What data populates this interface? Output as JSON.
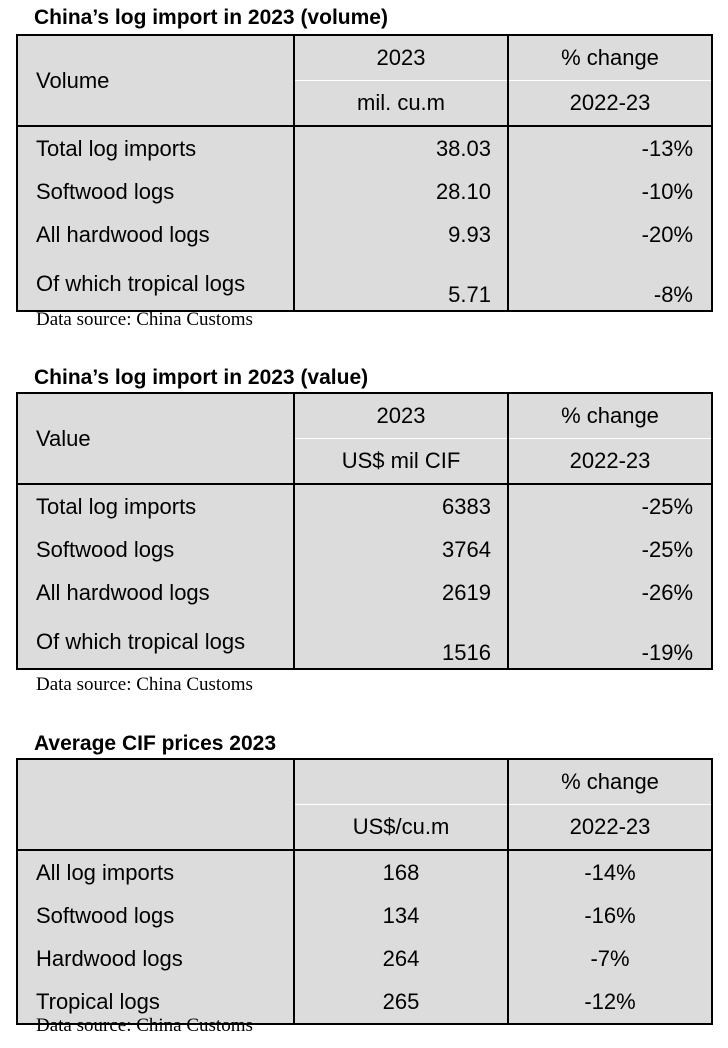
{
  "volume_table": {
    "title": "China’s log import in 2023 (volume)",
    "header_row_label": "Volume",
    "col2_line1": "2023",
    "col2_line2": "mil. cu.m",
    "col3_line1": "% change",
    "col3_line2": "2022-23",
    "rows": [
      {
        "label": "Total log imports",
        "value": "38.03",
        "change": "-13%"
      },
      {
        "label": "Softwood logs",
        "value": "28.10",
        "change": "-10%"
      },
      {
        "label": "All hardwood logs",
        "value": "9.93",
        "change": "-20%"
      },
      {
        "label": "Of which tropical logs",
        "value": "5.71",
        "change": "-8%"
      }
    ],
    "source": "Data source: China Customs"
  },
  "value_table": {
    "title": "China’s log import in 2023 (value)",
    "header_row_label": "Value",
    "col2_line1": "2023",
    "col2_line2": "US$ mil CIF",
    "col3_line1": "% change",
    "col3_line2": "2022-23",
    "rows": [
      {
        "label": "Total log imports",
        "value": "6383",
        "change": "-25%"
      },
      {
        "label": "Softwood logs",
        "value": "3764",
        "change": "-25%"
      },
      {
        "label": "All hardwood logs",
        "value": "2619",
        "change": "-26%"
      },
      {
        "label": "Of which tropical logs",
        "value": "1516",
        "change": "-19%"
      }
    ],
    "source": "Data source: China Customs"
  },
  "price_table": {
    "title": "Average CIF prices 2023",
    "col2_line2": "US$/cu.m",
    "col3_line1": "% change",
    "col3_line2": "2022-23",
    "rows": [
      {
        "label": "All log imports",
        "value": "168",
        "change": "-14%"
      },
      {
        "label": "Softwood logs",
        "value": "134",
        "change": "-16%"
      },
      {
        "label": "Hardwood logs",
        "value": "264",
        "change": "-7%"
      },
      {
        "label": "Tropical logs",
        "value": "265",
        "change": "-12%"
      }
    ],
    "source": "Data source: China Customs"
  }
}
